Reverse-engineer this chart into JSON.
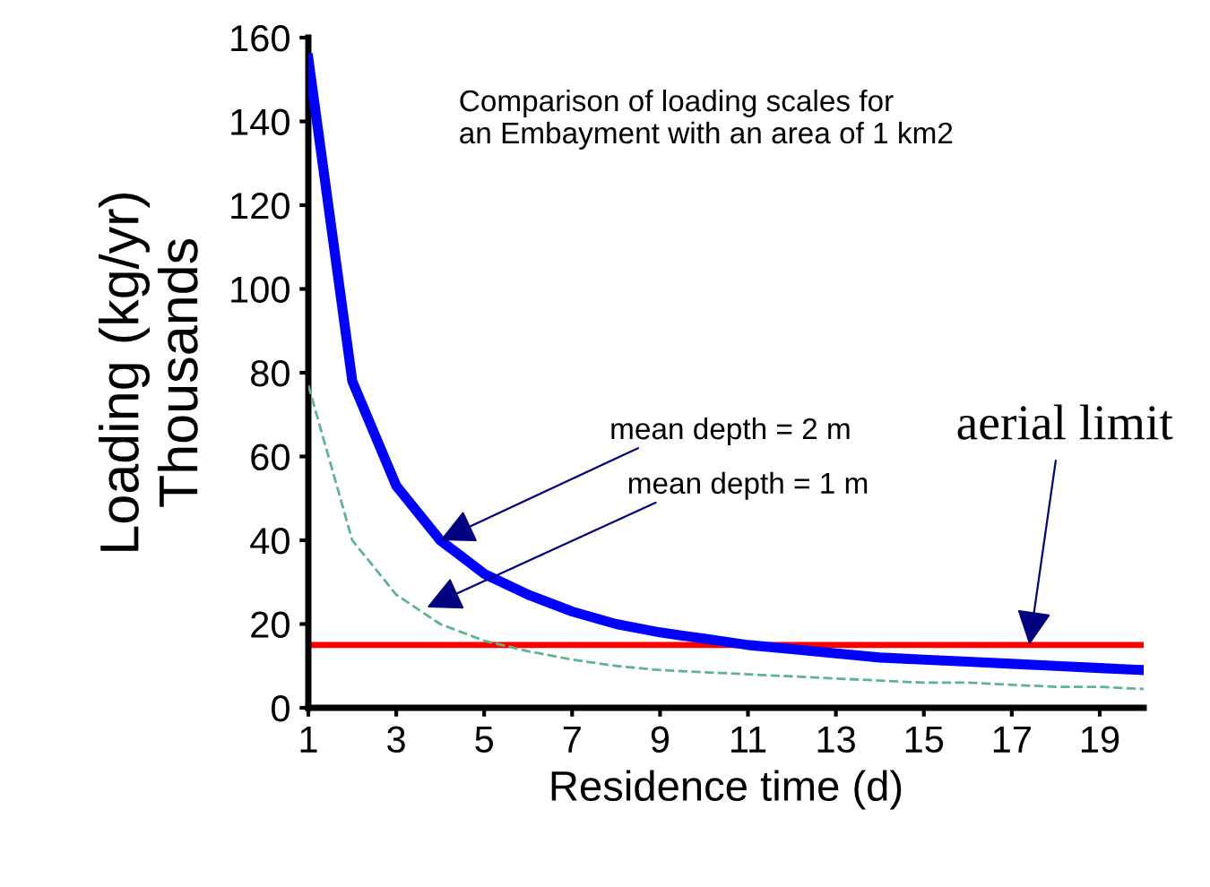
{
  "chart_data": {
    "type": "line",
    "title": "Comparison of loading scales for\nan Embayment with an area of 1 km2",
    "xlabel": "Residence time (d)",
    "ylabel": "Loading (kg/yr)\nThousands",
    "x": [
      1,
      2,
      3,
      4,
      5,
      6,
      7,
      8,
      9,
      10,
      11,
      12,
      13,
      14,
      15,
      16,
      17,
      18,
      19,
      20
    ],
    "series": [
      {
        "color": "#0000ff",
        "line_style": "solid",
        "values": [
          155,
          78,
          53,
          40,
          32,
          27,
          23,
          20,
          18,
          16.5,
          15,
          14,
          13,
          12,
          11.5,
          11,
          10.5,
          10,
          9.5,
          9
        ]
      },
      {
        "color": "#5fb58a",
        "line_style": "dashed",
        "values": [
          77,
          40,
          27,
          20,
          16,
          13.5,
          11.5,
          10,
          9,
          8.5,
          8,
          7.5,
          7,
          6.5,
          6,
          6,
          5.5,
          5,
          5,
          4.5
        ]
      }
    ],
    "ref_lines": [
      {
        "axis": "y",
        "value": 15,
        "color": "#ff0000"
      }
    ],
    "annotations": [
      {
        "text": "mean depth = 2 m",
        "x": 4,
        "y": 40
      },
      {
        "text": "mean depth = 1 m",
        "x": 3.7,
        "y": 24
      },
      {
        "text": "aerial limit",
        "x": 17.4,
        "y": 15
      }
    ],
    "xlim": [
      1,
      20
    ],
    "xticks": [
      1,
      3,
      5,
      7,
      9,
      11,
      13,
      15,
      17,
      19
    ],
    "ylim": [
      0,
      160
    ],
    "yticks": [
      0,
      20,
      40,
      60,
      80,
      100,
      120,
      140,
      160
    ],
    "grid": false,
    "legend": false,
    "marker": "none"
  }
}
